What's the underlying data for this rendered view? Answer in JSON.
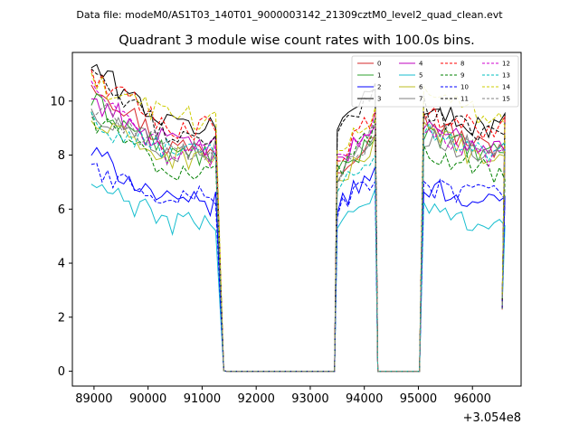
{
  "chart_data": {
    "type": "line",
    "suptitle": "Data file: modeM0/AS1T03_140T01_9000003142_21309cztM0_level2_quad_clean.evt",
    "title": "Quadrant 3 module wise count rates with 100.0s bins.",
    "xlabel": "",
    "ylabel": "",
    "x_offset_label": "+3.054e8",
    "xlim": [
      88600,
      96900
    ],
    "ylim": [
      -0.55,
      11.8
    ],
    "xticks": [
      89000,
      90000,
      91000,
      92000,
      93000,
      94000,
      95000,
      96000
    ],
    "xtick_labels": [
      "89000",
      "90000",
      "91000",
      "92000",
      "93000",
      "94000",
      "95000",
      "96000"
    ],
    "yticks": [
      0,
      2,
      4,
      6,
      8,
      10
    ],
    "ytick_labels": [
      "0",
      "2",
      "4",
      "6",
      "8",
      "10"
    ],
    "legend_position": "top-right",
    "legend_columns": 4,
    "segments": [
      {
        "x_start": 88950,
        "x_end": 91250,
        "drop_to": 91400
      },
      {
        "x_start": 93450,
        "x_end": 94100,
        "drop_to": 94250
      },
      {
        "x_start": 95050,
        "x_end": 96550,
        "drop_to": 96550
      }
    ],
    "zero_gaps": [
      {
        "x": [
          91450,
          93400
        ]
      },
      {
        "x": [
          94250,
          95000
        ]
      }
    ],
    "series": [
      {
        "name": "0",
        "color": "#d62728",
        "dashed": false,
        "level": 8.3,
        "start": 10.8,
        "peak2": 9.0,
        "start3": 9.3
      },
      {
        "name": "1",
        "color": "#2ca02c",
        "dashed": false,
        "level": 8.0,
        "start": 10.0,
        "peak2": 8.7,
        "start3": 9.0
      },
      {
        "name": "2",
        "color": "#0000ff",
        "dashed": false,
        "level": 6.2,
        "start": 8.1,
        "peak2": 7.4,
        "start3": 6.9
      },
      {
        "name": "3",
        "color": "#000000",
        "dashed": false,
        "level": 9.1,
        "start": 11.3,
        "peak2": 10.8,
        "start3": 9.6
      },
      {
        "name": "4",
        "color": "#bf00bf",
        "dashed": false,
        "level": 8.4,
        "start": 10.1,
        "peak2": 9.2,
        "start3": 8.9
      },
      {
        "name": "5",
        "color": "#17becf",
        "dashed": false,
        "level": 5.5,
        "start": 6.9,
        "peak2": 6.6,
        "start3": 6.0
      },
      {
        "name": "6",
        "color": "#bcbd22",
        "dashed": false,
        "level": 7.9,
        "start": 9.2,
        "peak2": 8.4,
        "start3": 8.8
      },
      {
        "name": "7",
        "color": "#7f7f7f",
        "dashed": false,
        "level": 8.2,
        "start": 9.6,
        "peak2": 8.9,
        "start3": 8.6
      },
      {
        "name": "8",
        "color": "#ff0000",
        "dashed": true,
        "level": 9.0,
        "start": 11.0,
        "peak2": 9.5,
        "start3": 9.4
      },
      {
        "name": "9",
        "color": "#008000",
        "dashed": true,
        "level": 7.4,
        "start": 9.4,
        "peak2": 9.0,
        "start3": 8.3
      },
      {
        "name": "10",
        "color": "#0000ff",
        "dashed": true,
        "level": 6.5,
        "start": 7.4,
        "peak2": 7.2,
        "start3": 6.8
      },
      {
        "name": "11",
        "color": "#000000",
        "dashed": true,
        "level": 8.7,
        "start": 10.9,
        "peak2": 10.6,
        "start3": 9.8
      },
      {
        "name": "12",
        "color": "#d000d0",
        "dashed": true,
        "level": 8.0,
        "start": 10.4,
        "peak2": 9.3,
        "start3": 9.1
      },
      {
        "name": "13",
        "color": "#00bfbf",
        "dashed": true,
        "level": 8.1,
        "start": 9.2,
        "peak2": 8.2,
        "start3": 8.9
      },
      {
        "name": "14",
        "color": "#cccc00",
        "dashed": true,
        "level": 9.4,
        "start": 10.6,
        "peak2": 9.7,
        "start3": 10.5
      },
      {
        "name": "15",
        "color": "#808080",
        "dashed": true,
        "level": 8.2,
        "start": 9.8,
        "peak2": 8.8,
        "start3": 9.2
      }
    ]
  }
}
